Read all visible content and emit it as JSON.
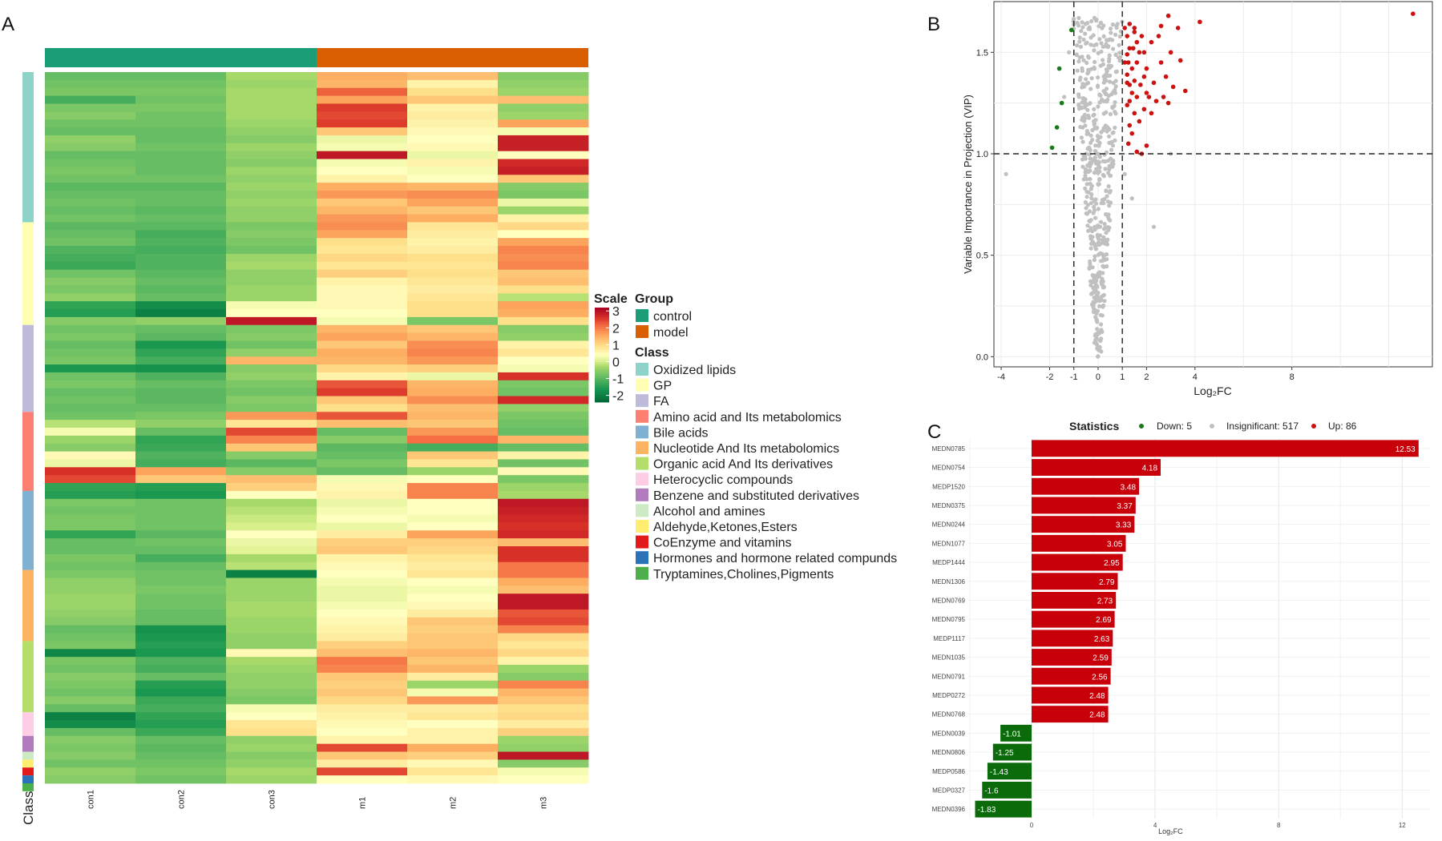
{
  "panel_labels": {
    "a": "A",
    "b": "B",
    "c": "C"
  },
  "colors": {
    "control": "#1b9e77",
    "model": "#d95f02",
    "down": "#1a7a1a",
    "up": "#cc1111",
    "insignificant": "#c0c0c0",
    "bar_up": "#c8000a",
    "bar_down": "#0b6b0b"
  },
  "chart_data": [
    {
      "type": "heatmap",
      "title": "",
      "columns": [
        "con1",
        "con2",
        "con3",
        "m1",
        "m2",
        "m3"
      ],
      "row_axis_label": "Class",
      "groups": [
        {
          "name": "control",
          "columns": [
            "con1",
            "con2",
            "con3"
          ]
        },
        {
          "name": "model",
          "columns": [
            "m1",
            "m2",
            "m3"
          ]
        }
      ],
      "row_classes_order": [
        {
          "name": "Oxidized lipids",
          "color": "#8ed3c7",
          "rows": 19
        },
        {
          "name": "GP",
          "color": "#ffffb3",
          "rows": 13
        },
        {
          "name": "FA",
          "color": "#bebada",
          "rows": 11
        },
        {
          "name": "Amino acid  and Its metabolomics",
          "color": "#fb8072",
          "rows": 10
        },
        {
          "name": "Bile acids",
          "color": "#80b1d3",
          "rows": 10
        },
        {
          "name": "Nucleotide And  Its metabolomics",
          "color": "#fdb462",
          "rows": 9
        },
        {
          "name": "Organic acid And  Its derivatives",
          "color": "#b3de69",
          "rows": 9
        },
        {
          "name": "Heterocyclic compounds",
          "color": "#fccde5",
          "rows": 3
        },
        {
          "name": "Benzene and substituted derivatives",
          "color": "#b07cbd",
          "rows": 2
        },
        {
          "name": "Alcohol and amines",
          "color": "#ccebc5",
          "rows": 1
        },
        {
          "name": "Aldehyde,Ketones,Esters",
          "color": "#ffed6f",
          "rows": 1
        },
        {
          "name": "CoEnzyme and vitamins",
          "color": "#e31a1c",
          "rows": 1
        },
        {
          "name": "Hormones and hormone related compunds",
          "color": "#2b73b8",
          "rows": 1
        },
        {
          "name": "Tryptamines,Cholines,Pigments",
          "color": "#4daf4a",
          "rows": 1
        }
      ],
      "scale": {
        "title": "Scale",
        "ticks": [
          3,
          2,
          1,
          0,
          -1,
          -2
        ],
        "range": [
          -2.4,
          3.2
        ]
      },
      "legend": {
        "group_title": "Group",
        "class_title": "Class"
      },
      "values": [
        [
          -0.9,
          -0.9,
          -0.3,
          1.5,
          1.3,
          -0.6
        ],
        [
          -0.8,
          -0.8,
          -0.4,
          1.4,
          0.6,
          -0.5
        ],
        [
          -0.7,
          -0.7,
          -0.3,
          2.2,
          0.9,
          -0.4
        ],
        [
          -1.2,
          -0.8,
          -0.3,
          1.6,
          1.2,
          1.3
        ],
        [
          -0.7,
          -0.7,
          -0.3,
          2.5,
          0.6,
          -0.5
        ],
        [
          -0.6,
          -0.8,
          -0.3,
          2.4,
          0.7,
          -0.4
        ],
        [
          -0.8,
          -0.8,
          -0.4,
          2.5,
          0.6,
          1.6
        ],
        [
          -0.9,
          -0.9,
          -0.5,
          1.2,
          0.5,
          0.3
        ],
        [
          -0.5,
          -0.9,
          -0.6,
          0.2,
          0.4,
          2.8
        ],
        [
          -0.6,
          -0.8,
          -0.4,
          0.3,
          0.5,
          2.8
        ],
        [
          -0.9,
          -0.9,
          -0.5,
          2.9,
          0.2,
          0.4
        ],
        [
          -0.8,
          -0.9,
          -0.6,
          0.3,
          0.6,
          2.7
        ],
        [
          -0.7,
          -0.9,
          -0.4,
          0.4,
          0.3,
          2.8
        ],
        [
          -0.8,
          -0.8,
          -0.5,
          0.6,
          0.4,
          1.2
        ],
        [
          -1.0,
          -1.0,
          -0.4,
          1.5,
          1.4,
          -0.6
        ],
        [
          -0.9,
          -0.9,
          -0.5,
          1.7,
          1.8,
          -0.7
        ],
        [
          -0.8,
          -0.9,
          -0.4,
          1.2,
          1.6,
          0.2
        ],
        [
          -0.9,
          -1.0,
          -0.5,
          1.4,
          1.2,
          -0.4
        ],
        [
          -0.8,
          -0.9,
          -0.5,
          1.7,
          1.5,
          0.6
        ],
        [
          -1.0,
          -1.0,
          -0.7,
          1.8,
          0.8,
          1.0
        ],
        [
          -0.9,
          -1.2,
          -0.6,
          1.6,
          0.7,
          0.4
        ],
        [
          -0.8,
          -1.1,
          -0.7,
          0.9,
          0.6,
          1.6
        ],
        [
          -1.1,
          -1.2,
          -0.8,
          0.8,
          0.7,
          1.9
        ],
        [
          -1.2,
          -1.1,
          -0.4,
          1.0,
          0.9,
          1.8
        ],
        [
          -1.3,
          -1.1,
          -0.3,
          0.8,
          0.8,
          1.9
        ],
        [
          -0.8,
          -1.0,
          -0.5,
          1.1,
          0.9,
          1.2
        ],
        [
          -0.6,
          -0.9,
          -0.5,
          0.6,
          0.8,
          1.3
        ],
        [
          -0.7,
          -1.0,
          -0.4,
          0.5,
          0.7,
          0.9
        ],
        [
          -0.5,
          -0.9,
          -0.4,
          0.5,
          0.8,
          -0.2
        ],
        [
          -1.4,
          -1.8,
          0.3,
          0.5,
          0.9,
          1.6
        ],
        [
          -1.5,
          -2.0,
          0.4,
          0.4,
          0.9,
          1.5
        ],
        [
          -0.6,
          -0.5,
          2.9,
          0.3,
          -0.7,
          0.9
        ],
        [
          -0.8,
          -0.9,
          -0.7,
          1.4,
          1.2,
          -0.6
        ],
        [
          -0.7,
          -1.0,
          -0.6,
          1.6,
          1.4,
          -0.5
        ],
        [
          -0.9,
          -1.6,
          -0.8,
          1.2,
          1.8,
          0.6
        ],
        [
          -0.8,
          -1.4,
          -0.5,
          1.5,
          1.9,
          0.8
        ],
        [
          -0.7,
          -1.2,
          1.4,
          1.4,
          1.7,
          0.4
        ],
        [
          -1.6,
          -1.7,
          -0.6,
          1.0,
          1.1,
          0.3
        ],
        [
          -0.8,
          -1.1,
          -0.5,
          0.6,
          0.2,
          2.6
        ],
        [
          -0.7,
          -0.9,
          -0.7,
          2.3,
          1.4,
          -0.7
        ],
        [
          -0.9,
          -1.0,
          -0.8,
          2.5,
          1.5,
          -0.8
        ],
        [
          -0.8,
          -1.0,
          -0.6,
          1.2,
          1.8,
          2.7
        ],
        [
          -0.9,
          -0.9,
          -0.7,
          0.9,
          1.3,
          -0.5
        ],
        [
          -0.8,
          -0.7,
          1.7,
          2.3,
          1.4,
          -0.7
        ],
        [
          -0.2,
          -0.5,
          0.8,
          1.3,
          1.2,
          -0.8
        ],
        [
          0.3,
          -0.9,
          2.4,
          -0.9,
          1.7,
          -0.9
        ],
        [
          -0.4,
          -1.4,
          1.9,
          -0.6,
          2.1,
          1.4
        ],
        [
          -0.6,
          -1.3,
          1.2,
          -1.0,
          -1.2,
          -0.9
        ],
        [
          0.5,
          -1.1,
          -0.6,
          -0.9,
          1.2,
          0.6
        ],
        [
          0.2,
          -1.2,
          -1.0,
          -0.7,
          0.8,
          -0.8
        ],
        [
          2.6,
          1.6,
          -0.6,
          -0.9,
          -0.4,
          0.5
        ],
        [
          2.4,
          1.2,
          1.3,
          0.3,
          0.4,
          -0.7
        ],
        [
          -1.4,
          -1.5,
          1.1,
          0.5,
          1.9,
          -0.4
        ],
        [
          -1.5,
          -1.6,
          0.4,
          0.6,
          1.9,
          -0.3
        ],
        [
          -0.7,
          -0.8,
          -0.3,
          0.2,
          0.4,
          2.9
        ],
        [
          -0.8,
          -0.8,
          -0.2,
          0.3,
          0.4,
          2.8
        ],
        [
          -0.7,
          -0.8,
          -0.1,
          0.4,
          0.3,
          2.7
        ],
        [
          -0.7,
          -0.8,
          0.0,
          0.2,
          0.4,
          2.6
        ],
        [
          -1.4,
          -1.0,
          0.4,
          0.7,
          1.6,
          2.7
        ],
        [
          -0.9,
          -0.8,
          0.2,
          1.1,
          1.1,
          1.3
        ],
        [
          -0.9,
          -0.9,
          0.1,
          1.2,
          1.0,
          2.6
        ],
        [
          -0.7,
          -1.2,
          -0.3,
          0.6,
          0.8,
          2.6
        ],
        [
          -0.8,
          -0.9,
          -0.2,
          0.5,
          0.7,
          2.0
        ],
        [
          -0.7,
          -0.8,
          -2.0,
          0.4,
          0.8,
          2.0
        ],
        [
          -0.5,
          -0.8,
          -0.4,
          0.3,
          0.4,
          1.5
        ],
        [
          -0.5,
          -0.7,
          -0.4,
          0.2,
          0.3,
          1.3
        ],
        [
          -0.4,
          -0.8,
          -0.4,
          0.2,
          0.4,
          2.9
        ],
        [
          -0.4,
          -0.8,
          -0.3,
          0.3,
          0.5,
          2.9
        ],
        [
          -0.5,
          -0.9,
          -0.3,
          0.4,
          0.7,
          2.3
        ],
        [
          -0.6,
          -0.9,
          -0.4,
          0.5,
          1.2,
          2.4
        ],
        [
          -0.9,
          -1.7,
          -0.4,
          0.6,
          1.1,
          1.9
        ],
        [
          -0.8,
          -1.6,
          -0.5,
          0.7,
          1.2,
          1.0
        ],
        [
          -0.7,
          -1.5,
          -0.5,
          1.1,
          1.2,
          0.8
        ],
        [
          -1.9,
          -1.6,
          0.5,
          1.3,
          1.4,
          1.0
        ],
        [
          -0.7,
          -1.1,
          -0.3,
          2.0,
          1.2,
          0.6
        ],
        [
          -0.8,
          -1.2,
          -0.4,
          1.9,
          1.4,
          -0.4
        ],
        [
          -0.6,
          -0.9,
          -0.5,
          1.2,
          0.7,
          -0.6
        ],
        [
          -0.7,
          -1.5,
          -0.5,
          1.1,
          -0.4,
          1.9
        ],
        [
          -0.8,
          -1.6,
          -0.6,
          1.2,
          0.3,
          1.4
        ],
        [
          -0.6,
          -1.3,
          -0.7,
          1.0,
          1.7,
          1.2
        ],
        [
          -0.9,
          -1.2,
          0.3,
          0.7,
          0.7,
          0.9
        ],
        [
          -2.0,
          -1.4,
          0.4,
          0.6,
          0.8,
          1.0
        ],
        [
          -1.8,
          -1.5,
          0.8,
          0.5,
          0.4,
          0.7
        ],
        [
          -0.9,
          -1.3,
          0.9,
          0.4,
          0.6,
          1.1
        ],
        [
          -0.6,
          -0.9,
          -0.5,
          0.6,
          0.6,
          -0.4
        ],
        [
          -0.7,
          -1.0,
          -0.4,
          2.4,
          1.5,
          -0.5
        ],
        [
          -0.6,
          -0.9,
          -0.6,
          1.2,
          1.1,
          2.9
        ],
        [
          -0.8,
          -0.8,
          -0.5,
          0.7,
          0.5,
          -0.6
        ],
        [
          -0.5,
          -0.7,
          -0.3,
          2.4,
          0.8,
          0.3
        ],
        [
          -0.6,
          -0.8,
          -0.4,
          0.4,
          0.5,
          0.4
        ]
      ]
    },
    {
      "type": "scatter",
      "title": "",
      "xlabel": "Log₂FC",
      "ylabel": "Variable Importance in Projection (VIP)",
      "xlim": [
        -4.3,
        13.8
      ],
      "ylim": [
        -0.05,
        1.75
      ],
      "xticks": [
        -4,
        -2,
        -1,
        0,
        1,
        2,
        4,
        8
      ],
      "yticks": [
        0.0,
        0.5,
        1.0,
        1.5
      ],
      "threshold_lines": {
        "x": [
          -1,
          1
        ],
        "y": 1.0
      },
      "up_points": [
        [
          13.0,
          1.69
        ],
        [
          4.2,
          1.65
        ],
        [
          3.3,
          1.62
        ],
        [
          2.6,
          1.63
        ],
        [
          1.3,
          1.64
        ],
        [
          1.5,
          1.6
        ],
        [
          2.2,
          1.55
        ],
        [
          1.8,
          1.58
        ],
        [
          3.0,
          1.5
        ],
        [
          2.6,
          1.45
        ],
        [
          3.4,
          1.46
        ],
        [
          1.6,
          1.45
        ],
        [
          2.0,
          1.42
        ],
        [
          1.4,
          1.42
        ],
        [
          2.8,
          1.38
        ],
        [
          1.9,
          1.38
        ],
        [
          1.5,
          1.36
        ],
        [
          2.3,
          1.35
        ],
        [
          1.3,
          1.34
        ],
        [
          3.1,
          1.33
        ],
        [
          2.0,
          1.3
        ],
        [
          2.7,
          1.28
        ],
        [
          1.6,
          1.28
        ],
        [
          3.6,
          1.31
        ],
        [
          2.4,
          1.26
        ],
        [
          1.3,
          1.26
        ],
        [
          1.9,
          1.22
        ],
        [
          2.2,
          1.2
        ],
        [
          1.5,
          1.2
        ],
        [
          2.9,
          1.25
        ],
        [
          1.7,
          1.16
        ],
        [
          1.3,
          1.14
        ],
        [
          1.4,
          1.1
        ],
        [
          2.0,
          1.04
        ],
        [
          1.6,
          1.01
        ],
        [
          1.8,
          1.0
        ],
        [
          1.2,
          1.49
        ],
        [
          1.2,
          1.58
        ],
        [
          1.2,
          1.35
        ],
        [
          1.25,
          1.05
        ],
        [
          1.45,
          1.52
        ],
        [
          1.75,
          1.34
        ],
        [
          2.5,
          1.58
        ],
        [
          1.1,
          1.62
        ],
        [
          1.3,
          1.52
        ],
        [
          1.1,
          1.45
        ],
        [
          1.2,
          1.39
        ],
        [
          2.9,
          1.68
        ],
        [
          1.5,
          1.62
        ],
        [
          1.7,
          1.5
        ],
        [
          1.2,
          1.24
        ],
        [
          1.4,
          1.3
        ],
        [
          2.1,
          1.28
        ],
        [
          1.6,
          1.55
        ],
        [
          1.9,
          1.5
        ],
        [
          1.25,
          1.45
        ]
      ],
      "down_points": [
        [
          -1.1,
          1.61
        ],
        [
          -1.6,
          1.42
        ],
        [
          -1.5,
          1.25
        ],
        [
          -1.7,
          1.13
        ],
        [
          -1.9,
          1.03
        ]
      ],
      "gray_band_center": 0.0,
      "gray_outliers": [
        [
          -3.8,
          0.9
        ],
        [
          2.3,
          0.64
        ],
        [
          3.0,
          1.0
        ],
        [
          -1.4,
          1.28
        ],
        [
          -1.2,
          1.5
        ],
        [
          1.1,
          0.9
        ],
        [
          1.4,
          0.78
        ]
      ]
    },
    {
      "type": "bar",
      "orientation": "horizontal",
      "legend": {
        "title": "Statistics",
        "down_label": "Down: 5",
        "insignificant_label": "Insignificant: 517",
        "up_label": "Up: 86"
      },
      "xlabel": "Log₂FC",
      "xlim": [
        -2.05,
        12.9
      ],
      "xticks": [
        0,
        4,
        8,
        12
      ],
      "categories": [
        "MEDN0785",
        "MEDN0754",
        "MEDP1520",
        "MEDN0375",
        "MEDN0244",
        "MEDN1077",
        "MEDP1444",
        "MEDN1306",
        "MEDN0769",
        "MEDN0795",
        "MEDP1117",
        "MEDN1035",
        "MEDN0791",
        "MEDP0272",
        "MEDN0768",
        "MEDN0039",
        "MEDN0806",
        "MEDP0586",
        "MEDP0327",
        "MEDN0396"
      ],
      "values": [
        12.53,
        4.18,
        3.48,
        3.37,
        3.33,
        3.05,
        2.95,
        2.79,
        2.73,
        2.69,
        2.63,
        2.59,
        2.56,
        2.48,
        2.48,
        -1.01,
        -1.25,
        -1.43,
        -1.6,
        -1.83
      ],
      "value_labels": [
        "12.53",
        "4.18",
        "3.48",
        "3.37",
        "3.33",
        "3.05",
        "2.95",
        "2.79",
        "2.73",
        "2.69",
        "2.63",
        "2.59",
        "2.56",
        "2.48",
        "2.48",
        "-1.01",
        "-1.25",
        "-1.43",
        "-1.6",
        "-1.83"
      ]
    }
  ]
}
